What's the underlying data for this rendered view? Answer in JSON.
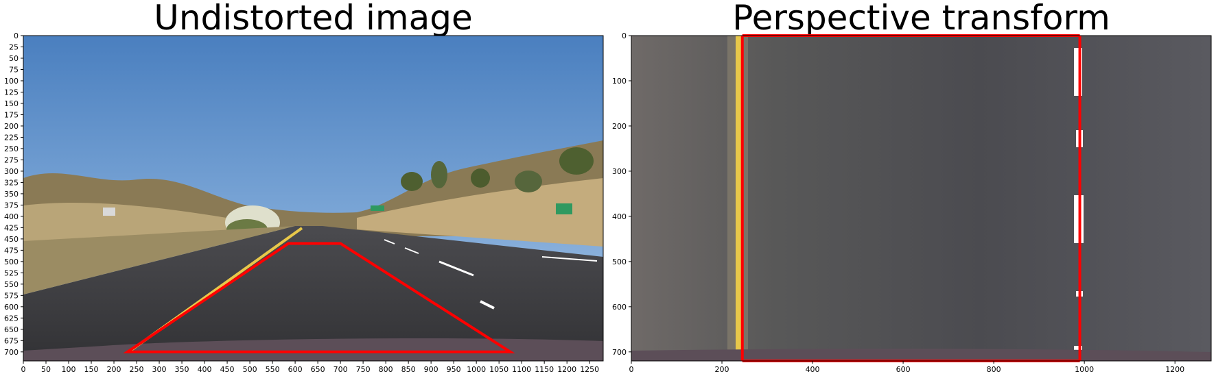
{
  "figure": {
    "left_title": "Undistorted image",
    "right_title": "Perspective transform"
  },
  "left_axes": {
    "x_ticks": [
      "0",
      "50",
      "100",
      "150",
      "200",
      "250",
      "300",
      "350",
      "400",
      "450",
      "500",
      "550",
      "600",
      "650",
      "700",
      "750",
      "800",
      "850",
      "900",
      "950",
      "1000",
      "1050",
      "1100",
      "1150",
      "1200",
      "1250"
    ],
    "y_ticks": [
      "0",
      "25",
      "50",
      "75",
      "100",
      "125",
      "150",
      "175",
      "200",
      "225",
      "250",
      "275",
      "300",
      "325",
      "350",
      "375",
      "400",
      "425",
      "450",
      "475",
      "500",
      "525",
      "550",
      "575",
      "600",
      "625",
      "650",
      "675",
      "700"
    ],
    "x_range": [
      0,
      1280
    ],
    "y_range": [
      0,
      720
    ]
  },
  "right_axes": {
    "x_ticks": [
      "0",
      "200",
      "400",
      "600",
      "800",
      "1000",
      "1200"
    ],
    "y_ticks": [
      "0",
      "100",
      "200",
      "300",
      "400",
      "500",
      "600",
      "700"
    ],
    "x_range": [
      0,
      1280
    ],
    "y_range": [
      0,
      720
    ]
  },
  "source_polygon": [
    [
      585,
      460
    ],
    [
      700,
      460
    ],
    [
      1075,
      700
    ],
    [
      230,
      700
    ]
  ],
  "destination_lines": [
    [
      245,
      0,
      245,
      720
    ],
    [
      990,
      0,
      990,
      720
    ]
  ],
  "colors": {
    "outline": "#ff0000",
    "sky": "#5b8fc4",
    "road": "#3f3f44",
    "lane_yellow": "#e8c84a",
    "lane_white": "#ffffff"
  }
}
